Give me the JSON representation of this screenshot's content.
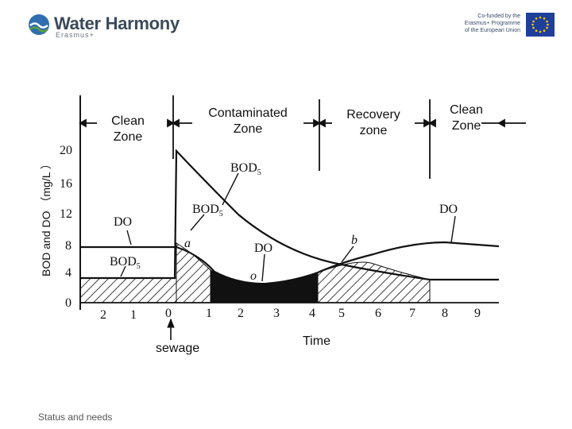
{
  "header": {
    "logo_title": "Water Harmony",
    "logo_subtitle": "Erasmus+",
    "eu_line1": "Co-funded by the",
    "eu_line2": "Erasmus+ Programme",
    "eu_line3": "of the European Union"
  },
  "diagram": {
    "zones": {
      "clean_left": "Clean\nZone",
      "contaminated": "Contaminated\nZone",
      "recovery": "Recovery\nzone",
      "clean_right": "Clean\nZone"
    },
    "y_axis_label": "BOD and DO （mg/L ）",
    "y_ticks": [
      "20",
      "16",
      "12",
      "8",
      "4",
      "0"
    ],
    "x_ticks": [
      "2",
      "1",
      "0",
      "1",
      "2",
      "3",
      "4",
      "5",
      "6",
      "7",
      "8",
      "9"
    ],
    "curve_labels": {
      "bod5_top": "BOD",
      "bod5_mid": "BOD",
      "bod5_left": "BOD",
      "sub5": "5",
      "do_left": "DO",
      "do_mid": "DO",
      "do_right": "DO",
      "point_a": "a",
      "point_b": "b",
      "point_o": "o"
    },
    "sewage_label": "sewage",
    "time_label": "Time"
  },
  "footer": {
    "text": "Status and needs"
  },
  "colors": {
    "ink": "#111111",
    "logo_blue": "#2f6fb0",
    "logo_green": "#5aa03c",
    "eu_blue": "#1f3f9a",
    "eu_star": "#ffcc00"
  }
}
